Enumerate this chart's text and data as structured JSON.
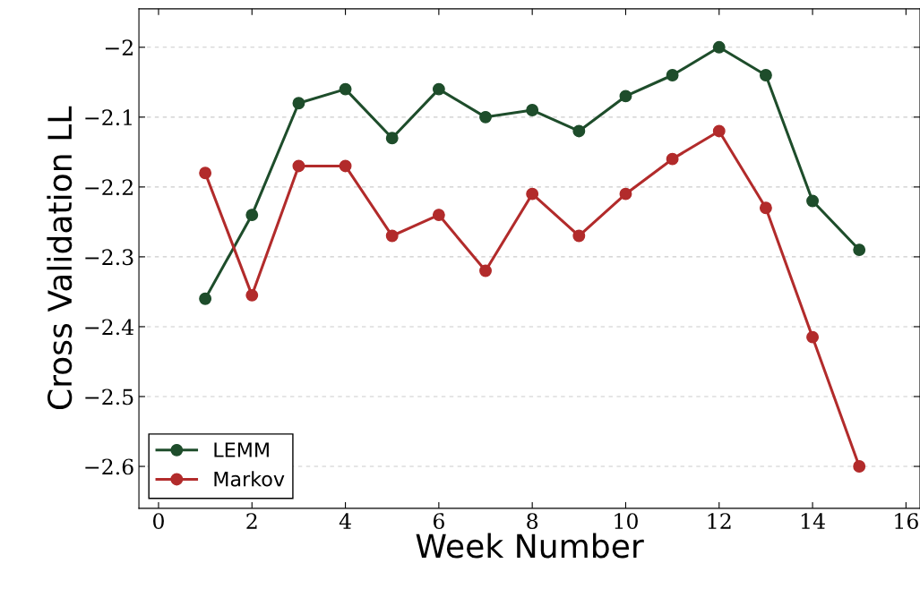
{
  "chart_data": {
    "type": "line",
    "xlabel": "Week Number",
    "ylabel": "Cross Validation LL",
    "x": [
      1,
      2,
      3,
      4,
      5,
      6,
      7,
      8,
      9,
      10,
      11,
      12,
      13,
      14,
      15
    ],
    "series": [
      {
        "name": "LEMM",
        "color": "#1e4d2b",
        "values": [
          -2.36,
          -2.24,
          -2.08,
          -2.06,
          -2.13,
          -2.06,
          -2.1,
          -2.09,
          -2.12,
          -2.07,
          -2.04,
          -2.0,
          -2.04,
          -2.22,
          -2.29
        ]
      },
      {
        "name": "Markov",
        "color": "#b22b2b",
        "values": [
          -2.18,
          -2.355,
          -2.17,
          -2.17,
          -2.27,
          -2.24,
          -2.32,
          -2.21,
          -2.27,
          -2.21,
          -2.16,
          -2.12,
          -2.23,
          -2.415,
          -2.6
        ]
      }
    ],
    "xlim": [
      -0.42,
      16.3
    ],
    "ylim": [
      -2.66,
      -1.945
    ],
    "xticks": [
      0,
      2,
      4,
      6,
      8,
      10,
      12,
      14,
      16
    ],
    "yticks": [
      {
        "value": -2.6,
        "label": "−2.6"
      },
      {
        "value": -2.5,
        "label": "−2.5"
      },
      {
        "value": -2.4,
        "label": "−2.4"
      },
      {
        "value": -2.3,
        "label": "−2.3"
      },
      {
        "value": -2.2,
        "label": "−2.2"
      },
      {
        "value": -2.1,
        "label": "−2.1"
      },
      {
        "value": -2,
        "label": "−2"
      }
    ],
    "grid": "y",
    "legend": "bottom left",
    "marker": "circle",
    "line_style": "solid"
  }
}
